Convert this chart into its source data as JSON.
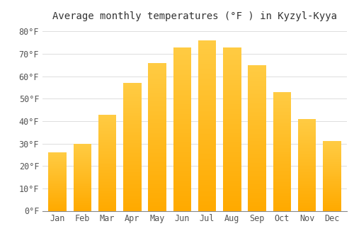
{
  "title": "Average monthly temperatures (°F ) in Kyzyl-Kyya",
  "months": [
    "Jan",
    "Feb",
    "Mar",
    "Apr",
    "May",
    "Jun",
    "Jul",
    "Aug",
    "Sep",
    "Oct",
    "Nov",
    "Dec"
  ],
  "values": [
    26,
    30,
    43,
    57,
    66,
    73,
    76,
    73,
    65,
    53,
    41,
    31
  ],
  "bar_color_top": "#FFCC44",
  "bar_color_bottom": "#FFAA00",
  "background_color": "#FFFFFF",
  "grid_color": "#DDDDDD",
  "ylim": [
    0,
    83
  ],
  "yticks": [
    0,
    10,
    20,
    30,
    40,
    50,
    60,
    70,
    80
  ],
  "title_fontsize": 10,
  "tick_fontsize": 8.5,
  "font_family": "monospace"
}
